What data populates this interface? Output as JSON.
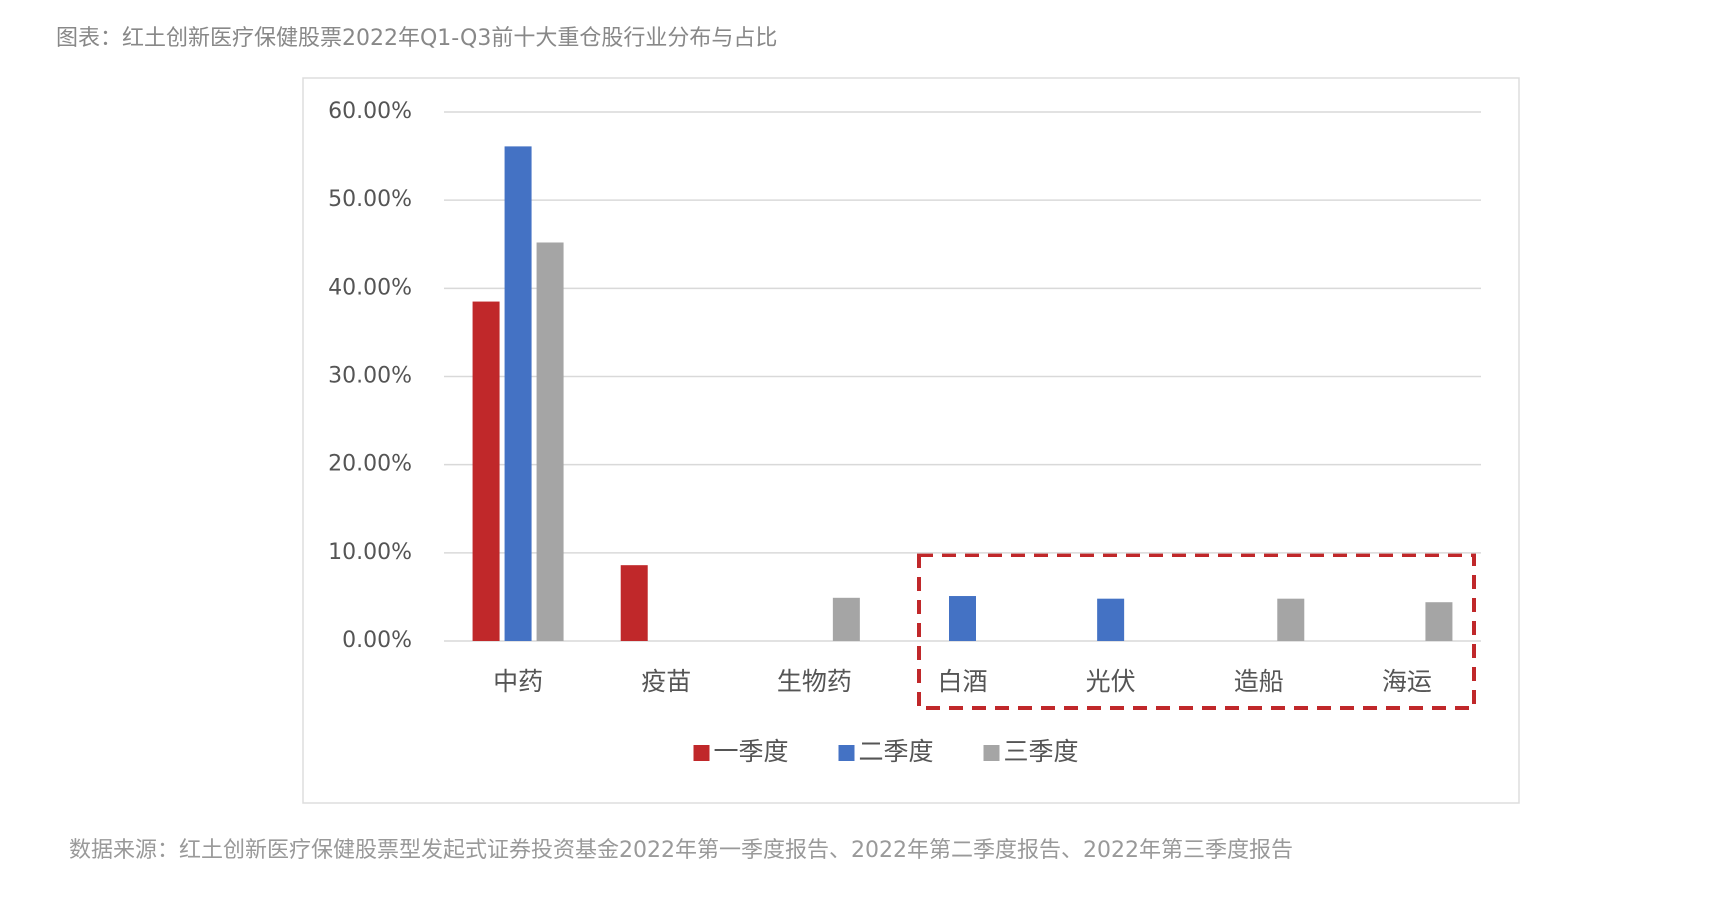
{
  "chart_data": {
    "type": "bar",
    "title": "图表：红土创新医疗保健股票2022年Q1-Q3前十大重仓股行业分布与占比",
    "source": "数据来源：红土创新医疗保健股票型发起式证券投资基金2022年第一季度报告、2022年第二季度报告、2022年第三季度报告",
    "categories": [
      "中药",
      "疫苗",
      "生物药",
      "白酒",
      "光伏",
      "造船",
      "海运"
    ],
    "series": [
      {
        "name": "一季度",
        "color": "#c0282a",
        "values": [
          38.5,
          8.6,
          null,
          null,
          null,
          null,
          null
        ]
      },
      {
        "name": "二季度",
        "color": "#4472c4",
        "values": [
          56.1,
          null,
          null,
          5.1,
          4.8,
          null,
          null
        ]
      },
      {
        "name": "三季度",
        "color": "#a5a5a5",
        "values": [
          45.2,
          null,
          4.9,
          null,
          null,
          4.8,
          4.4
        ]
      }
    ],
    "ylim": [
      0,
      60
    ],
    "yticks": [
      {
        "value": 0,
        "label": "0.00%"
      },
      {
        "value": 10,
        "label": "10.00%"
      },
      {
        "value": 20,
        "label": "20.00%"
      },
      {
        "value": 30,
        "label": "30.00%"
      },
      {
        "value": 40,
        "label": "40.00%"
      },
      {
        "value": 50,
        "label": "50.00%"
      },
      {
        "value": 60,
        "label": "60.00%"
      }
    ],
    "grid": true,
    "legend": "bottom"
  }
}
